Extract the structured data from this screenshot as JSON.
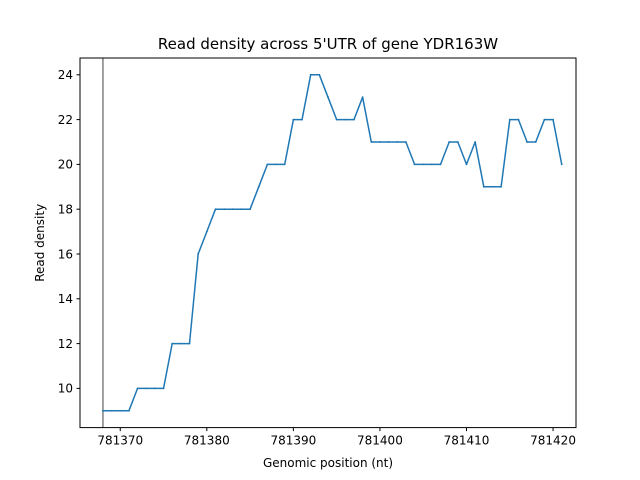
{
  "chart_data": {
    "type": "line",
    "title": "Read density across 5'UTR of gene YDR163W",
    "xlabel": "Genomic position (nt)",
    "ylabel": "Read density",
    "xlim": [
      781365.35,
      781422.65
    ],
    "ylim": [
      8.25,
      24.75
    ],
    "xticks": [
      781370,
      781380,
      781390,
      781400,
      781410,
      781420
    ],
    "yticks": [
      10,
      12,
      14,
      16,
      18,
      20,
      22,
      24
    ],
    "grid": false,
    "legend": "none",
    "vline": {
      "x": 781368,
      "color": "#808080"
    },
    "series": [
      {
        "name": "read density",
        "color": "#1f77b4",
        "x": [
          781368,
          781369,
          781370,
          781371,
          781372,
          781373,
          781374,
          781375,
          781376,
          781377,
          781378,
          781379,
          781380,
          781381,
          781382,
          781383,
          781384,
          781385,
          781386,
          781387,
          781388,
          781389,
          781390,
          781391,
          781392,
          781393,
          781394,
          781395,
          781396,
          781397,
          781398,
          781399,
          781400,
          781401,
          781402,
          781403,
          781404,
          781405,
          781406,
          781407,
          781408,
          781409,
          781410,
          781411,
          781412,
          781413,
          781414,
          781415,
          781416,
          781417,
          781418,
          781419,
          781420,
          781421
        ],
        "values": [
          9,
          9,
          9,
          9,
          10,
          10,
          10,
          10,
          12,
          12,
          12,
          16,
          17,
          18,
          18,
          18,
          18,
          18,
          19,
          20,
          20,
          20,
          22,
          22,
          24,
          24,
          23,
          22,
          22,
          22,
          23,
          21,
          21,
          21,
          21,
          21,
          20,
          20,
          20,
          20,
          21,
          21,
          20,
          21,
          19,
          19,
          19,
          22,
          22,
          21,
          21,
          22,
          22,
          20
        ]
      }
    ]
  }
}
